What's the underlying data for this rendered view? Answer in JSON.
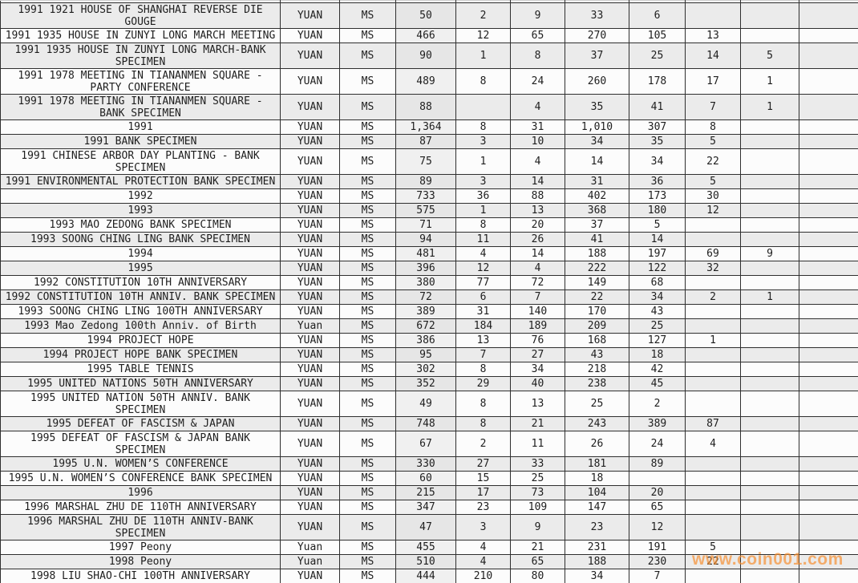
{
  "colors": {
    "row_shade": "#ebebeb",
    "row_plain": "#fcfcfc",
    "count_column_tint": "#f0f0f0",
    "grid_line": "#2f2f2f",
    "series_link_text": "#5f6c87",
    "value_text": "#1e1e1e",
    "watermark_orange": "#f78e2e"
  },
  "watermark": {
    "text": "www.coin001.com"
  },
  "table": {
    "rows": [
      {
        "desc": "1991 1921 HOUSE OF SHANGHAI REVERSE DIE GOUGE",
        "currency": "YUAN",
        "grade": "MS",
        "values": [
          "50",
          "2",
          "9",
          "33",
          "6",
          "",
          "",
          ""
        ]
      },
      {
        "desc": "1991 1935 HOUSE IN ZUNYI LONG MARCH MEETING",
        "currency": "YUAN",
        "grade": "MS",
        "values": [
          "466",
          "12",
          "65",
          "270",
          "105",
          "13",
          "",
          ""
        ]
      },
      {
        "desc": "1991 1935 HOUSE IN ZUNYI LONG MARCH-BANK SPECIMEN",
        "currency": "YUAN",
        "grade": "MS",
        "values": [
          "90",
          "1",
          "8",
          "37",
          "25",
          "14",
          "5",
          ""
        ]
      },
      {
        "desc": "1991 1978 MEETING IN TIANANMEN SQUARE - PARTY CONFERENCE",
        "currency": "YUAN",
        "grade": "MS",
        "values": [
          "489",
          "8",
          "24",
          "260",
          "178",
          "17",
          "1",
          ""
        ]
      },
      {
        "desc": "1991 1978 MEETING IN TIANANMEN SQUARE - BANK SPECIMEN",
        "currency": "YUAN",
        "grade": "MS",
        "values": [
          "88",
          "",
          "4",
          "35",
          "41",
          "7",
          "1",
          ""
        ]
      },
      {
        "desc": "1991",
        "currency": "YUAN",
        "grade": "MS",
        "values": [
          "1,364",
          "8",
          "31",
          "1,010",
          "307",
          "8",
          "",
          ""
        ]
      },
      {
        "desc": "1991 BANK SPECIMEN",
        "currency": "YUAN",
        "grade": "MS",
        "values": [
          "87",
          "3",
          "10",
          "34",
          "35",
          "5",
          "",
          ""
        ]
      },
      {
        "desc": "1991 CHINESE ARBOR DAY PLANTING - BANK SPECIMEN",
        "currency": "YUAN",
        "grade": "MS",
        "values": [
          "75",
          "1",
          "4",
          "14",
          "34",
          "22",
          "",
          ""
        ]
      },
      {
        "desc": "1991 ENVIRONMENTAL PROTECTION BANK SPECIMEN",
        "currency": "YUAN",
        "grade": "MS",
        "values": [
          "89",
          "3",
          "14",
          "31",
          "36",
          "5",
          "",
          ""
        ]
      },
      {
        "desc": "1992",
        "currency": "YUAN",
        "grade": "MS",
        "values": [
          "733",
          "36",
          "88",
          "402",
          "173",
          "30",
          "",
          ""
        ]
      },
      {
        "desc": "1993",
        "currency": "YUAN",
        "grade": "MS",
        "values": [
          "575",
          "1",
          "13",
          "368",
          "180",
          "12",
          "",
          ""
        ]
      },
      {
        "desc": "1993 MAO ZEDONG BANK SPECIMEN",
        "currency": "YUAN",
        "grade": "MS",
        "values": [
          "71",
          "8",
          "20",
          "37",
          "5",
          "",
          "",
          ""
        ]
      },
      {
        "desc": "1993 SOONG CHING LING BANK SPECIMEN",
        "currency": "YUAN",
        "grade": "MS",
        "values": [
          "94",
          "11",
          "26",
          "41",
          "14",
          "",
          "",
          ""
        ]
      },
      {
        "desc": "1994",
        "currency": "YUAN",
        "grade": "MS",
        "values": [
          "481",
          "4",
          "14",
          "188",
          "197",
          "69",
          "9",
          ""
        ]
      },
      {
        "desc": "1995",
        "currency": "YUAN",
        "grade": "MS",
        "values": [
          "396",
          "12",
          "4",
          "222",
          "122",
          "32",
          "",
          ""
        ]
      },
      {
        "desc": "1992 CONSTITUTION 10TH ANNIVERSARY",
        "currency": "YUAN",
        "grade": "MS",
        "values": [
          "380",
          "77",
          "72",
          "149",
          "68",
          "",
          "",
          ""
        ]
      },
      {
        "desc": "1992 CONSTITUTION 10TH ANNIV. BANK SPECIMEN",
        "currency": "YUAN",
        "grade": "MS",
        "values": [
          "72",
          "6",
          "7",
          "22",
          "34",
          "2",
          "1",
          ""
        ]
      },
      {
        "desc": "1993 SOONG CHING LING 100TH ANNIVERSARY",
        "currency": "YUAN",
        "grade": "MS",
        "values": [
          "389",
          "31",
          "140",
          "170",
          "43",
          "",
          "",
          ""
        ]
      },
      {
        "desc": "1993 Mao Zedong 100th Anniv. of Birth",
        "currency": "Yuan",
        "grade": "MS",
        "values": [
          "672",
          "184",
          "189",
          "209",
          "25",
          "",
          "",
          ""
        ]
      },
      {
        "desc": "1994 PROJECT HOPE",
        "currency": "YUAN",
        "grade": "MS",
        "values": [
          "386",
          "13",
          "76",
          "168",
          "127",
          "1",
          "",
          ""
        ]
      },
      {
        "desc": "1994 PROJECT HOPE BANK SPECIMEN",
        "currency": "YUAN",
        "grade": "MS",
        "values": [
          "95",
          "7",
          "27",
          "43",
          "18",
          "",
          "",
          ""
        ]
      },
      {
        "desc": "1995 TABLE TENNIS",
        "currency": "YUAN",
        "grade": "MS",
        "values": [
          "302",
          "8",
          "34",
          "218",
          "42",
          "",
          "",
          ""
        ]
      },
      {
        "desc": "1995 UNITED NATIONS 50TH ANNIVERSARY",
        "currency": "YUAN",
        "grade": "MS",
        "values": [
          "352",
          "29",
          "40",
          "238",
          "45",
          "",
          "",
          ""
        ]
      },
      {
        "desc": "1995 UNITED NATION 50TH ANNIV. BANK SPECIMEN",
        "currency": "YUAN",
        "grade": "MS",
        "values": [
          "49",
          "8",
          "13",
          "25",
          "2",
          "",
          "",
          ""
        ]
      },
      {
        "desc": "1995 DEFEAT OF FASCISM & JAPAN",
        "currency": "YUAN",
        "grade": "MS",
        "values": [
          "748",
          "8",
          "21",
          "243",
          "389",
          "87",
          "",
          ""
        ]
      },
      {
        "desc": "1995 DEFEAT OF FASCISM & JAPAN BANK SPECIMEN",
        "currency": "YUAN",
        "grade": "MS",
        "values": [
          "67",
          "2",
          "11",
          "26",
          "24",
          "4",
          "",
          ""
        ]
      },
      {
        "desc": "1995 U.N. WOMEN’S CONFERENCE",
        "currency": "YUAN",
        "grade": "MS",
        "values": [
          "330",
          "27",
          "33",
          "181",
          "89",
          "",
          "",
          ""
        ]
      },
      {
        "desc": "1995 U.N. WOMEN’S CONFERENCE BANK SPECIMEN",
        "currency": "YUAN",
        "grade": "MS",
        "values": [
          "60",
          "15",
          "25",
          "18",
          "",
          "",
          "",
          ""
        ]
      },
      {
        "desc": "1996",
        "currency": "YUAN",
        "grade": "MS",
        "values": [
          "215",
          "17",
          "73",
          "104",
          "20",
          "",
          "",
          ""
        ]
      },
      {
        "desc": "1996 MARSHAL ZHU DE 110TH ANNIVERSARY",
        "currency": "YUAN",
        "grade": "MS",
        "values": [
          "347",
          "23",
          "109",
          "147",
          "65",
          "",
          "",
          ""
        ]
      },
      {
        "desc": "1996 MARSHAL ZHU DE 110TH ANNIV-BANK SPECIMEN",
        "currency": "YUAN",
        "grade": "MS",
        "values": [
          "47",
          "3",
          "9",
          "23",
          "12",
          "",
          "",
          ""
        ]
      },
      {
        "desc": "1997 Peony",
        "currency": "Yuan",
        "grade": "MS",
        "values": [
          "455",
          "4",
          "21",
          "231",
          "191",
          "5",
          "",
          ""
        ]
      },
      {
        "desc": "1998 Peony",
        "currency": "Yuan",
        "grade": "MS",
        "values": [
          "510",
          "4",
          "65",
          "188",
          "230",
          "22",
          "",
          ""
        ]
      },
      {
        "desc": "1998 LIU SHAO-CHI 100TH ANNIVERSARY",
        "currency": "YUAN",
        "grade": "MS",
        "values": [
          "444",
          "210",
          "80",
          "34",
          "7",
          "",
          "",
          ""
        ]
      }
    ]
  }
}
